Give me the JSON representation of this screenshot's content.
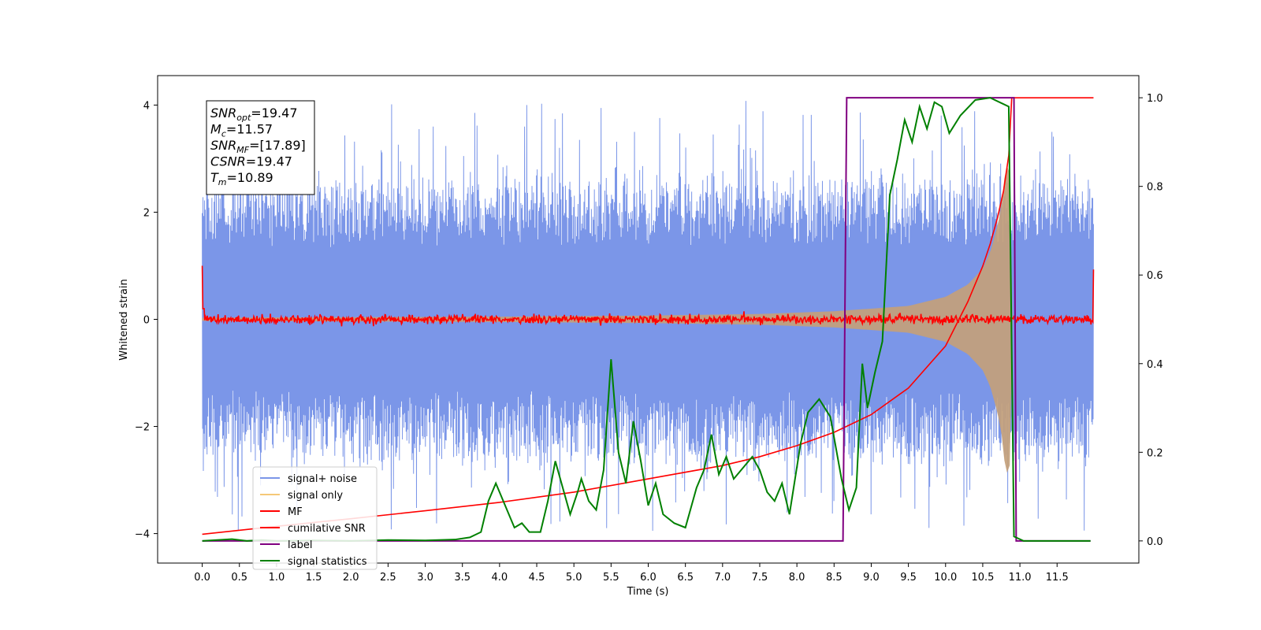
{
  "chart_data": {
    "type": "line",
    "title": "",
    "xlabel": "Time (s)",
    "ylabel": "Whitened strain",
    "xlim": [
      -0.6,
      12.6
    ],
    "ylim": [
      -4.55,
      4.55
    ],
    "y2lim": [
      -0.05,
      1.05
    ],
    "x_ticks": [
      0.0,
      0.5,
      1.0,
      1.5,
      2.0,
      2.5,
      3.0,
      3.5,
      4.0,
      4.5,
      5.0,
      5.5,
      6.0,
      6.5,
      7.0,
      7.5,
      8.0,
      8.5,
      9.0,
      9.5,
      10.0,
      10.5,
      11.0,
      11.5
    ],
    "x_tick_labels": [
      "0.0",
      "0.5",
      "1.0",
      "1.5",
      "2.0",
      "2.5",
      "3.0",
      "3.5",
      "4.0",
      "4.5",
      "5.0",
      "5.5",
      "6.0",
      "6.5",
      "7.0",
      "7.5",
      "8.0",
      "8.5",
      "9.0",
      "9.5",
      "10.0",
      "10.5",
      "11.0",
      "11.5"
    ],
    "y_ticks": [
      4,
      2,
      0,
      -2,
      -4
    ],
    "y_tick_labels": [
      "4",
      "2",
      "0",
      "−2",
      "−4"
    ],
    "y2_ticks": [
      1.0,
      0.8,
      0.6,
      0.4,
      0.2,
      0.0
    ],
    "y2_tick_labels": [
      "1.0",
      "0.8",
      "0.6",
      "0.4",
      "0.2",
      "0.0"
    ],
    "grid": false,
    "legend_position": "lower-left",
    "annotation": {
      "position": "upper-left",
      "lines": [
        {
          "base": "SNR",
          "sub": "opt",
          "value": "=19.47"
        },
        {
          "base": "M",
          "sub": "c",
          "value": "=11.57"
        },
        {
          "base": "SNR",
          "sub": "MF",
          "value": "=[17.89]"
        },
        {
          "base": "CSNR",
          "sub": "",
          "value": "=19.47"
        },
        {
          "base": "T",
          "sub": "m",
          "value": "=10.89"
        }
      ]
    },
    "series": [
      {
        "name": "signal+ noise",
        "axis": "left",
        "color": "#7b96e8",
        "style": "noisy band",
        "x_range": [
          0.0,
          11.99
        ],
        "typical_amplitude": 2.4,
        "peak_amplitude": 4.1
      },
      {
        "name": "signal only",
        "axis": "left",
        "color": "#f5c878",
        "style": "chirp envelope",
        "x_range": [
          0.0,
          10.9
        ],
        "envelope": [
          [
            0.0,
            0.03
          ],
          [
            2.0,
            0.04
          ],
          [
            4.0,
            0.05
          ],
          [
            6.0,
            0.07
          ],
          [
            7.5,
            0.1
          ],
          [
            8.5,
            0.15
          ],
          [
            9.5,
            0.25
          ],
          [
            10.0,
            0.42
          ],
          [
            10.3,
            0.65
          ],
          [
            10.5,
            0.95
          ],
          [
            10.6,
            1.25
          ],
          [
            10.7,
            1.75
          ],
          [
            10.75,
            2.1
          ],
          [
            10.8,
            2.75
          ],
          [
            10.86,
            3.0
          ],
          [
            10.9,
            0.0
          ]
        ]
      },
      {
        "name": "MF",
        "axis": "left",
        "color": "#ff0000",
        "style": "noisy line",
        "x_range": [
          0.0,
          11.99
        ],
        "edges": [
          [
            0.0,
            1.0
          ],
          [
            11.99,
            0.93
          ]
        ],
        "typical_amplitude": 0.08
      },
      {
        "name": "cumilative SNR",
        "axis": "right",
        "color": "#ff0000",
        "points": [
          [
            0.0,
            0.015
          ],
          [
            1.0,
            0.033
          ],
          [
            2.0,
            0.05
          ],
          [
            3.0,
            0.068
          ],
          [
            4.0,
            0.087
          ],
          [
            5.0,
            0.11
          ],
          [
            6.0,
            0.14
          ],
          [
            7.0,
            0.17
          ],
          [
            7.5,
            0.19
          ],
          [
            8.0,
            0.215
          ],
          [
            8.5,
            0.245
          ],
          [
            9.0,
            0.285
          ],
          [
            9.5,
            0.345
          ],
          [
            10.0,
            0.44
          ],
          [
            10.3,
            0.54
          ],
          [
            10.5,
            0.62
          ],
          [
            10.6,
            0.67
          ],
          [
            10.7,
            0.73
          ],
          [
            10.78,
            0.79
          ],
          [
            10.85,
            0.87
          ],
          [
            10.89,
            1.0
          ],
          [
            11.99,
            1.0
          ]
        ]
      },
      {
        "name": "label",
        "axis": "right",
        "color": "#800080",
        "points": [
          [
            0.0,
            0.0
          ],
          [
            8.62,
            0.0
          ],
          [
            8.67,
            1.0
          ],
          [
            10.92,
            1.0
          ],
          [
            10.95,
            0.0
          ],
          [
            11.95,
            0.0
          ]
        ]
      },
      {
        "name": "signal statistics",
        "axis": "right",
        "color": "#008000",
        "points": [
          [
            0.0,
            0.0
          ],
          [
            0.2,
            0.002
          ],
          [
            0.4,
            0.004
          ],
          [
            0.6,
            0.0
          ],
          [
            0.8,
            0.002
          ],
          [
            1.0,
            0.0
          ],
          [
            1.5,
            0.001
          ],
          [
            2.0,
            0.0
          ],
          [
            2.5,
            0.002
          ],
          [
            3.0,
            0.001
          ],
          [
            3.4,
            0.003
          ],
          [
            3.6,
            0.008
          ],
          [
            3.75,
            0.02
          ],
          [
            3.85,
            0.09
          ],
          [
            3.95,
            0.13
          ],
          [
            4.05,
            0.09
          ],
          [
            4.2,
            0.03
          ],
          [
            4.3,
            0.04
          ],
          [
            4.4,
            0.02
          ],
          [
            4.55,
            0.02
          ],
          [
            4.65,
            0.09
          ],
          [
            4.75,
            0.18
          ],
          [
            4.85,
            0.12
          ],
          [
            4.95,
            0.06
          ],
          [
            5.05,
            0.11
          ],
          [
            5.1,
            0.14
          ],
          [
            5.2,
            0.09
          ],
          [
            5.3,
            0.07
          ],
          [
            5.4,
            0.16
          ],
          [
            5.5,
            0.41
          ],
          [
            5.6,
            0.2
          ],
          [
            5.7,
            0.13
          ],
          [
            5.8,
            0.27
          ],
          [
            5.9,
            0.18
          ],
          [
            6.0,
            0.08
          ],
          [
            6.1,
            0.13
          ],
          [
            6.2,
            0.06
          ],
          [
            6.35,
            0.04
          ],
          [
            6.5,
            0.03
          ],
          [
            6.65,
            0.12
          ],
          [
            6.75,
            0.16
          ],
          [
            6.85,
            0.24
          ],
          [
            6.95,
            0.15
          ],
          [
            7.05,
            0.19
          ],
          [
            7.15,
            0.14
          ],
          [
            7.25,
            0.16
          ],
          [
            7.4,
            0.19
          ],
          [
            7.5,
            0.16
          ],
          [
            7.6,
            0.11
          ],
          [
            7.7,
            0.09
          ],
          [
            7.8,
            0.13
          ],
          [
            7.9,
            0.06
          ],
          [
            8.05,
            0.22
          ],
          [
            8.15,
            0.29
          ],
          [
            8.3,
            0.32
          ],
          [
            8.45,
            0.28
          ],
          [
            8.6,
            0.14
          ],
          [
            8.7,
            0.07
          ],
          [
            8.8,
            0.12
          ],
          [
            8.88,
            0.4
          ],
          [
            8.95,
            0.3
          ],
          [
            9.05,
            0.38
          ],
          [
            9.15,
            0.45
          ],
          [
            9.25,
            0.78
          ],
          [
            9.35,
            0.86
          ],
          [
            9.45,
            0.95
          ],
          [
            9.55,
            0.9
          ],
          [
            9.65,
            0.98
          ],
          [
            9.75,
            0.93
          ],
          [
            9.85,
            0.99
          ],
          [
            9.95,
            0.98
          ],
          [
            10.05,
            0.92
          ],
          [
            10.2,
            0.96
          ],
          [
            10.4,
            0.995
          ],
          [
            10.6,
            1.0
          ],
          [
            10.85,
            0.98
          ],
          [
            10.92,
            0.01
          ],
          [
            11.05,
            0.0
          ],
          [
            11.95,
            0.0
          ]
        ]
      }
    ]
  }
}
